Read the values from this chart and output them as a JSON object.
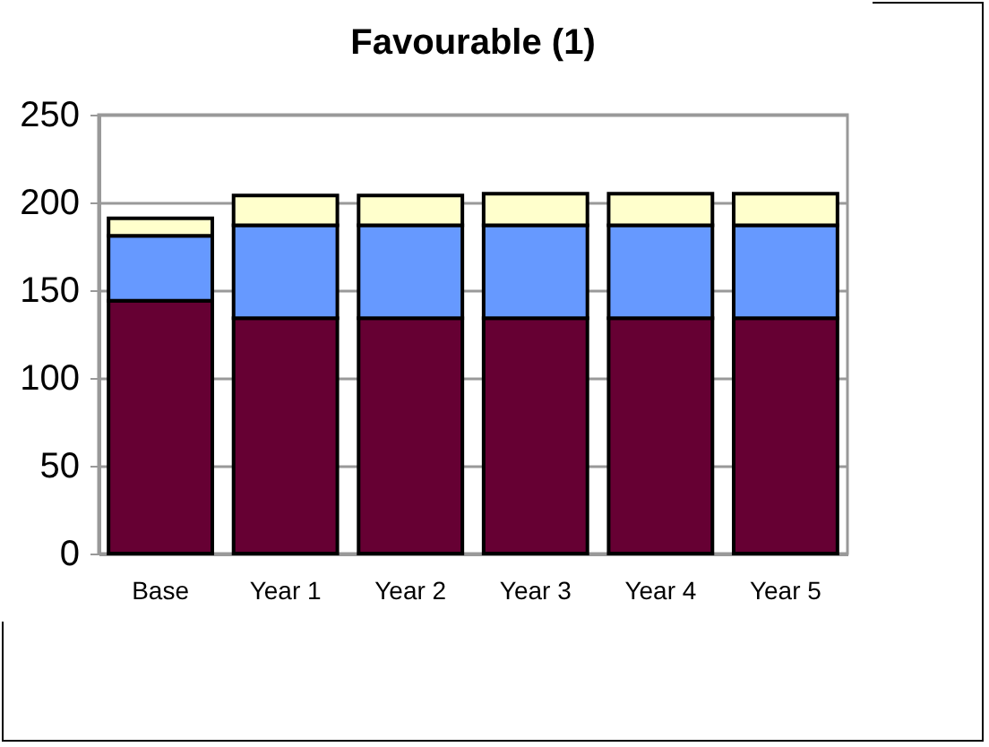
{
  "chart_data": {
    "type": "bar",
    "title": "Favourable (1)",
    "stacked": true,
    "categories": [
      "Base",
      "Year 1",
      "Year 2",
      "Year 3",
      "Year 4",
      "Year 5"
    ],
    "series": [
      {
        "color": "#660033",
        "values": [
          144,
          134,
          134,
          134,
          134,
          134
        ]
      },
      {
        "color": "#6699ff",
        "values": [
          37,
          53,
          53,
          53,
          53,
          53
        ]
      },
      {
        "color": "#ffffcc",
        "values": [
          10,
          17,
          17,
          18,
          18,
          18
        ]
      }
    ],
    "ylim": [
      0,
      250
    ],
    "yticks": [
      0,
      50,
      100,
      150,
      200,
      250
    ],
    "grid": "y"
  }
}
